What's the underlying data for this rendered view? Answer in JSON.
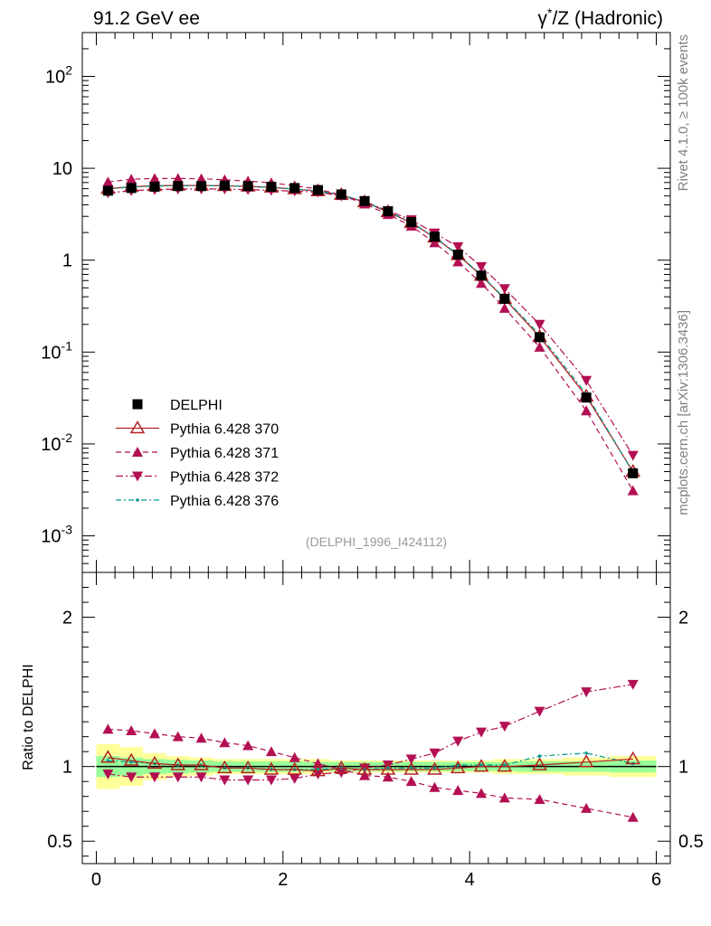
{
  "header": {
    "left_title": "91.2 GeV ee",
    "right_title_prefix": "γ",
    "right_title_sup": "*",
    "right_title_suffix": "/Z (Hadronic)"
  },
  "side": {
    "rivet_label": "Rivet 4.1.0, ≥ 100k events",
    "mcplots_label": "mcplots.cern.ch [arXiv:1306.3436]"
  },
  "analysis_label": "(DELPHI_1996_I424112)",
  "chart_data": [
    {
      "type": "line",
      "panel": "main",
      "yscale": "log",
      "xlim": [
        -0.15,
        6.15
      ],
      "ylim": [
        0.0004,
        300
      ],
      "y_ticks": [
        {
          "base": "10",
          "exp": "-3"
        },
        {
          "base": "10",
          "exp": "-2"
        },
        {
          "base": "10",
          "exp": "-1"
        },
        {
          "base": "1",
          "exp": ""
        },
        {
          "base": "10",
          "exp": ""
        },
        {
          "base": "10",
          "exp": "2"
        }
      ],
      "x": [
        0.125,
        0.375,
        0.625,
        0.875,
        1.125,
        1.375,
        1.625,
        1.875,
        2.125,
        2.375,
        2.625,
        2.875,
        3.125,
        3.375,
        3.625,
        3.875,
        4.125,
        4.375,
        4.75,
        5.25,
        5.75
      ],
      "series": [
        {
          "name": "DELPHI",
          "style": "data",
          "color": "#000000",
          "values": [
            5.7,
            6.1,
            6.3,
            6.4,
            6.4,
            6.5,
            6.4,
            6.3,
            6.1,
            5.8,
            5.2,
            4.4,
            3.4,
            2.6,
            1.8,
            1.15,
            0.68,
            0.38,
            0.145,
            0.032,
            0.0048
          ]
        },
        {
          "name": "Pythia 6.428 370",
          "style": "open-triangle",
          "color": "#b22222",
          "values": [
            6.0,
            6.3,
            6.45,
            6.5,
            6.5,
            6.45,
            6.35,
            6.2,
            5.95,
            5.65,
            5.15,
            4.3,
            3.35,
            2.55,
            1.77,
            1.14,
            0.68,
            0.38,
            0.147,
            0.033,
            0.005
          ]
        },
        {
          "name": "Pythia 6.428 371",
          "style": "triangle-up",
          "color": "#b30f52",
          "values": [
            7.1,
            7.6,
            7.75,
            7.75,
            7.7,
            7.5,
            7.25,
            6.95,
            6.45,
            5.95,
            5.1,
            4.1,
            3.15,
            2.35,
            1.55,
            0.96,
            0.56,
            0.3,
            0.113,
            0.023,
            0.0031
          ]
        },
        {
          "name": "Pythia 6.428 372",
          "style": "triangle-down",
          "color": "#b30f52",
          "values": [
            5.4,
            5.7,
            5.85,
            5.95,
            5.95,
            5.95,
            5.85,
            5.75,
            5.65,
            5.5,
            5.0,
            4.35,
            3.45,
            2.75,
            1.97,
            1.4,
            0.85,
            0.49,
            0.2,
            0.049,
            0.0075
          ]
        },
        {
          "name": "Pythia 6.428 376",
          "style": "dashdot",
          "color": "#009c8c",
          "values": [
            5.95,
            6.25,
            6.4,
            6.45,
            6.45,
            6.45,
            6.35,
            6.2,
            5.95,
            5.65,
            5.15,
            4.3,
            3.38,
            2.58,
            1.78,
            1.16,
            0.69,
            0.385,
            0.155,
            0.035,
            0.0049
          ]
        }
      ]
    },
    {
      "type": "line",
      "panel": "ratio",
      "ylabel": "Ratio to DELPHI",
      "xlim": [
        -0.15,
        6.15
      ],
      "ylim": [
        0.35,
        2.3
      ],
      "x_ticks": [
        "0",
        "2",
        "4",
        "6"
      ],
      "y_ticks": [
        "0.5",
        "1",
        "2"
      ],
      "x": [
        0.125,
        0.375,
        0.625,
        0.875,
        1.125,
        1.375,
        1.625,
        1.875,
        2.125,
        2.375,
        2.625,
        2.875,
        3.125,
        3.375,
        3.625,
        3.875,
        4.125,
        4.375,
        4.75,
        5.25,
        5.75
      ],
      "bands": {
        "bin_edges": [
          0,
          0.25,
          0.5,
          0.75,
          1.0,
          1.25,
          1.5,
          1.75,
          2.0,
          2.25,
          2.5,
          2.75,
          3.0,
          3.25,
          3.5,
          3.75,
          4.0,
          4.25,
          4.5,
          5.0,
          5.5,
          6.0
        ],
        "yellow_half_width": [
          0.15,
          0.13,
          0.09,
          0.07,
          0.06,
          0.05,
          0.05,
          0.05,
          0.05,
          0.05,
          0.04,
          0.04,
          0.04,
          0.04,
          0.04,
          0.04,
          0.04,
          0.05,
          0.05,
          0.06,
          0.07
        ],
        "green_half_width": [
          0.07,
          0.06,
          0.05,
          0.045,
          0.04,
          0.035,
          0.035,
          0.035,
          0.035,
          0.03,
          0.03,
          0.03,
          0.03,
          0.03,
          0.03,
          0.03,
          0.03,
          0.03,
          0.035,
          0.035,
          0.04
        ]
      },
      "series": [
        {
          "name": "Pythia 6.428 370",
          "style": "open-triangle",
          "color": "#b22222",
          "values": [
            1.06,
            1.04,
            1.02,
            1.01,
            1.01,
            0.99,
            0.99,
            0.98,
            0.98,
            0.97,
            0.99,
            0.98,
            0.98,
            0.98,
            0.98,
            0.99,
            1.0,
            1.0,
            1.01,
            1.03,
            1.05
          ]
        },
        {
          "name": "Pythia 6.428 371",
          "style": "triangle-up",
          "color": "#b30f52",
          "values": [
            1.25,
            1.24,
            1.22,
            1.2,
            1.19,
            1.16,
            1.14,
            1.1,
            1.06,
            1.02,
            0.98,
            0.94,
            0.93,
            0.9,
            0.86,
            0.84,
            0.82,
            0.79,
            0.78,
            0.72,
            0.66
          ]
        },
        {
          "name": "Pythia 6.428 372",
          "style": "triangle-down",
          "color": "#b30f52",
          "values": [
            0.95,
            0.93,
            0.93,
            0.93,
            0.93,
            0.91,
            0.91,
            0.91,
            0.92,
            0.95,
            0.96,
            0.99,
            1.01,
            1.05,
            1.09,
            1.17,
            1.23,
            1.27,
            1.37,
            1.5,
            1.55
          ]
        },
        {
          "name": "Pythia 6.428 376",
          "style": "dashdot",
          "color": "#009c8c",
          "values": [
            1.04,
            1.03,
            1.02,
            1.01,
            1.01,
            0.99,
            0.99,
            0.98,
            0.98,
            0.98,
            0.99,
            0.98,
            0.99,
            0.99,
            0.99,
            1.01,
            1.01,
            1.01,
            1.07,
            1.09,
            1.02
          ]
        }
      ]
    }
  ]
}
